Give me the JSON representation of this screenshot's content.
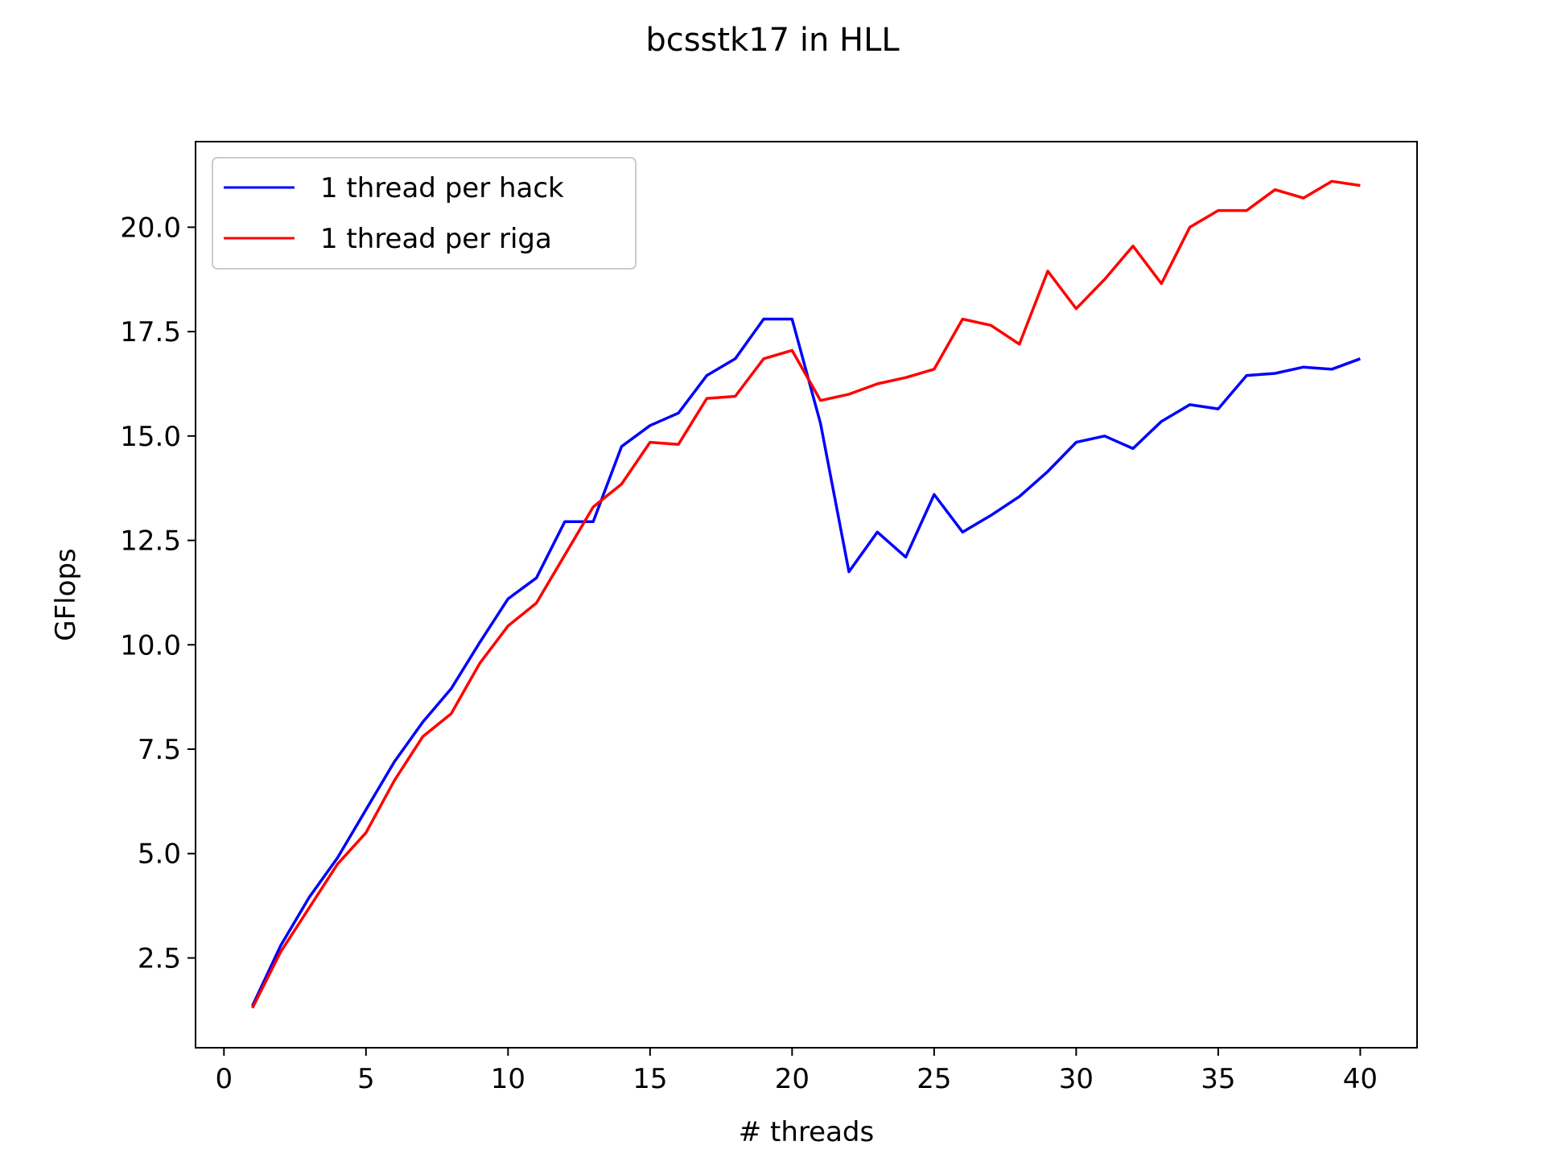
{
  "chart_data": {
    "type": "line",
    "title": "bcsstk17 in HLL",
    "xlabel": "# threads",
    "ylabel": "GFlops",
    "xlim": [
      -1,
      42
    ],
    "ylim": [
      0.35,
      22.05
    ],
    "xticks": [
      0,
      5,
      10,
      15,
      20,
      25,
      30,
      35,
      40
    ],
    "yticks": [
      2.5,
      5.0,
      7.5,
      10.0,
      12.5,
      15.0,
      17.5,
      20.0
    ],
    "xtick_labels": [
      "0",
      "5",
      "10",
      "15",
      "20",
      "25",
      "30",
      "35",
      "40"
    ],
    "ytick_labels": [
      "2.5",
      "5.0",
      "7.5",
      "10.0",
      "12.5",
      "15.0",
      "17.5",
      "20.0"
    ],
    "grid": false,
    "legend_position": "top-left",
    "x": [
      1,
      2,
      3,
      4,
      5,
      6,
      7,
      8,
      9,
      10,
      11,
      12,
      13,
      14,
      15,
      16,
      17,
      18,
      19,
      20,
      21,
      22,
      23,
      24,
      25,
      26,
      27,
      28,
      29,
      30,
      31,
      32,
      33,
      34,
      35,
      36,
      37,
      38,
      39,
      40
    ],
    "series": [
      {
        "name": "1 thread per hack",
        "color": "#0000ff",
        "values": [
          1.35,
          2.8,
          3.95,
          4.9,
          6.05,
          7.2,
          8.15,
          8.95,
          10.05,
          11.1,
          11.6,
          12.95,
          12.95,
          14.75,
          15.25,
          15.55,
          16.45,
          16.85,
          17.8,
          17.8,
          15.3,
          11.75,
          12.7,
          12.1,
          13.6,
          12.7,
          13.1,
          13.55,
          14.15,
          14.85,
          15.0,
          14.7,
          15.35,
          15.75,
          15.65,
          16.45,
          16.5,
          16.65,
          16.6,
          16.85
        ]
      },
      {
        "name": "1 thread per riga",
        "color": "#ff0000",
        "values": [
          1.3,
          2.65,
          3.7,
          4.75,
          5.5,
          6.75,
          7.8,
          8.35,
          9.55,
          10.45,
          11.0,
          12.15,
          13.3,
          13.85,
          14.85,
          14.8,
          15.9,
          15.95,
          16.85,
          17.05,
          15.85,
          16.0,
          16.25,
          16.4,
          16.6,
          17.8,
          17.65,
          17.2,
          18.95,
          18.05,
          18.75,
          19.55,
          18.65,
          20.0,
          20.4,
          20.4,
          20.9,
          20.7,
          21.1,
          21.0
        ]
      }
    ]
  }
}
